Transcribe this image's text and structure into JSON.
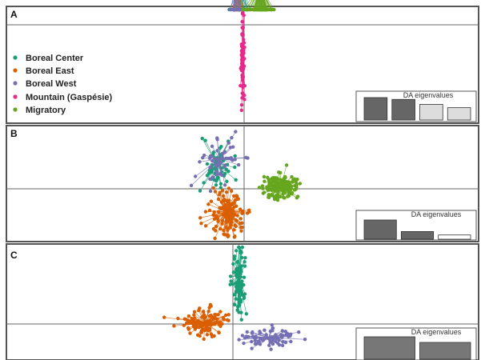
{
  "chart_data": {
    "type": "scatter",
    "legend": {
      "placement": "left",
      "entries": [
        {
          "name": "Boreal Center",
          "color": "#1b9e77"
        },
        {
          "name": "Boreal East",
          "color": "#d95f02"
        },
        {
          "name": "Boreal West",
          "color": "#7570b3"
        },
        {
          "name": "Mountain (Gaspésie)",
          "color": "#e7298a"
        },
        {
          "name": "Migratory",
          "color": "#66a61e"
        }
      ]
    },
    "panels": [
      {
        "label": "A",
        "eigen_title": "DA eigenvalues",
        "eigenvalues": [
          1.0,
          0.92,
          0.7,
          0.55
        ],
        "eigen_fill": [
          "#666666",
          "#666666",
          "#dddddd",
          "#dddddd"
        ],
        "groups": [
          {
            "group": "Boreal Center",
            "centroid": [
              -0.4,
              4.1
            ],
            "spread": [
              1.0,
              0.4
            ],
            "n": 20,
            "connect": true
          },
          {
            "group": "Boreal East",
            "centroid": [
              -0.9,
              3.9
            ],
            "spread": [
              1.0,
              0.3
            ],
            "n": 25,
            "connect": true
          },
          {
            "group": "Boreal West",
            "centroid": [
              -1.1,
              4.2
            ],
            "spread": [
              1.2,
              0.3
            ],
            "n": 20,
            "connect": true
          },
          {
            "group": "Mountain (Gaspésie)",
            "centroid": [
              -0.2,
              -4.0
            ],
            "spread": [
              0.25,
              4.8
            ],
            "n": 70,
            "connect": true
          },
          {
            "group": "Migratory",
            "centroid": [
              2.2,
              4.0
            ],
            "spread": [
              1.6,
              0.3
            ],
            "n": 90,
            "connect": true
          }
        ]
      },
      {
        "label": "B",
        "eigen_title": "DA eigenvalues",
        "eigenvalues": [
          1.0,
          0.4,
          0.22
        ],
        "eigen_fill": [
          "#666666",
          "#666666",
          "#ffffff"
        ],
        "groups": [
          {
            "group": "Boreal Center",
            "centroid": [
              -2.6,
              1.8
            ],
            "spread": [
              1.4,
              1.6
            ],
            "n": 60,
            "connect": true
          },
          {
            "group": "Boreal East",
            "centroid": [
              -1.7,
              -1.7
            ],
            "spread": [
              1.5,
              1.6
            ],
            "n": 130,
            "connect": true
          },
          {
            "group": "Boreal West",
            "centroid": [
              -2.4,
              2.2
            ],
            "spread": [
              2.0,
              1.6
            ],
            "n": 45,
            "connect": true
          },
          {
            "group": "Migratory",
            "centroid": [
              3.5,
              0.1
            ],
            "spread": [
              1.6,
              0.9
            ],
            "n": 150,
            "connect": true
          }
        ]
      },
      {
        "label": "C",
        "eigen_title": "DA eigenvalues",
        "eigenvalues": [
          1.0,
          0.75
        ],
        "eigen_fill": [
          "#777777",
          "#777777"
        ],
        "groups": [
          {
            "group": "Boreal Center",
            "centroid": [
              0.5,
              3.5
            ],
            "spread": [
              0.5,
              2.4
            ],
            "n": 90,
            "connect": true
          },
          {
            "group": "Boreal East",
            "centroid": [
              -2.5,
              0.1
            ],
            "spread": [
              2.0,
              0.9
            ],
            "n": 110,
            "connect": true
          },
          {
            "group": "Boreal West",
            "centroid": [
              3.2,
              -1.0
            ],
            "spread": [
              3.0,
              0.7
            ],
            "n": 70,
            "connect": true
          }
        ]
      }
    ]
  }
}
